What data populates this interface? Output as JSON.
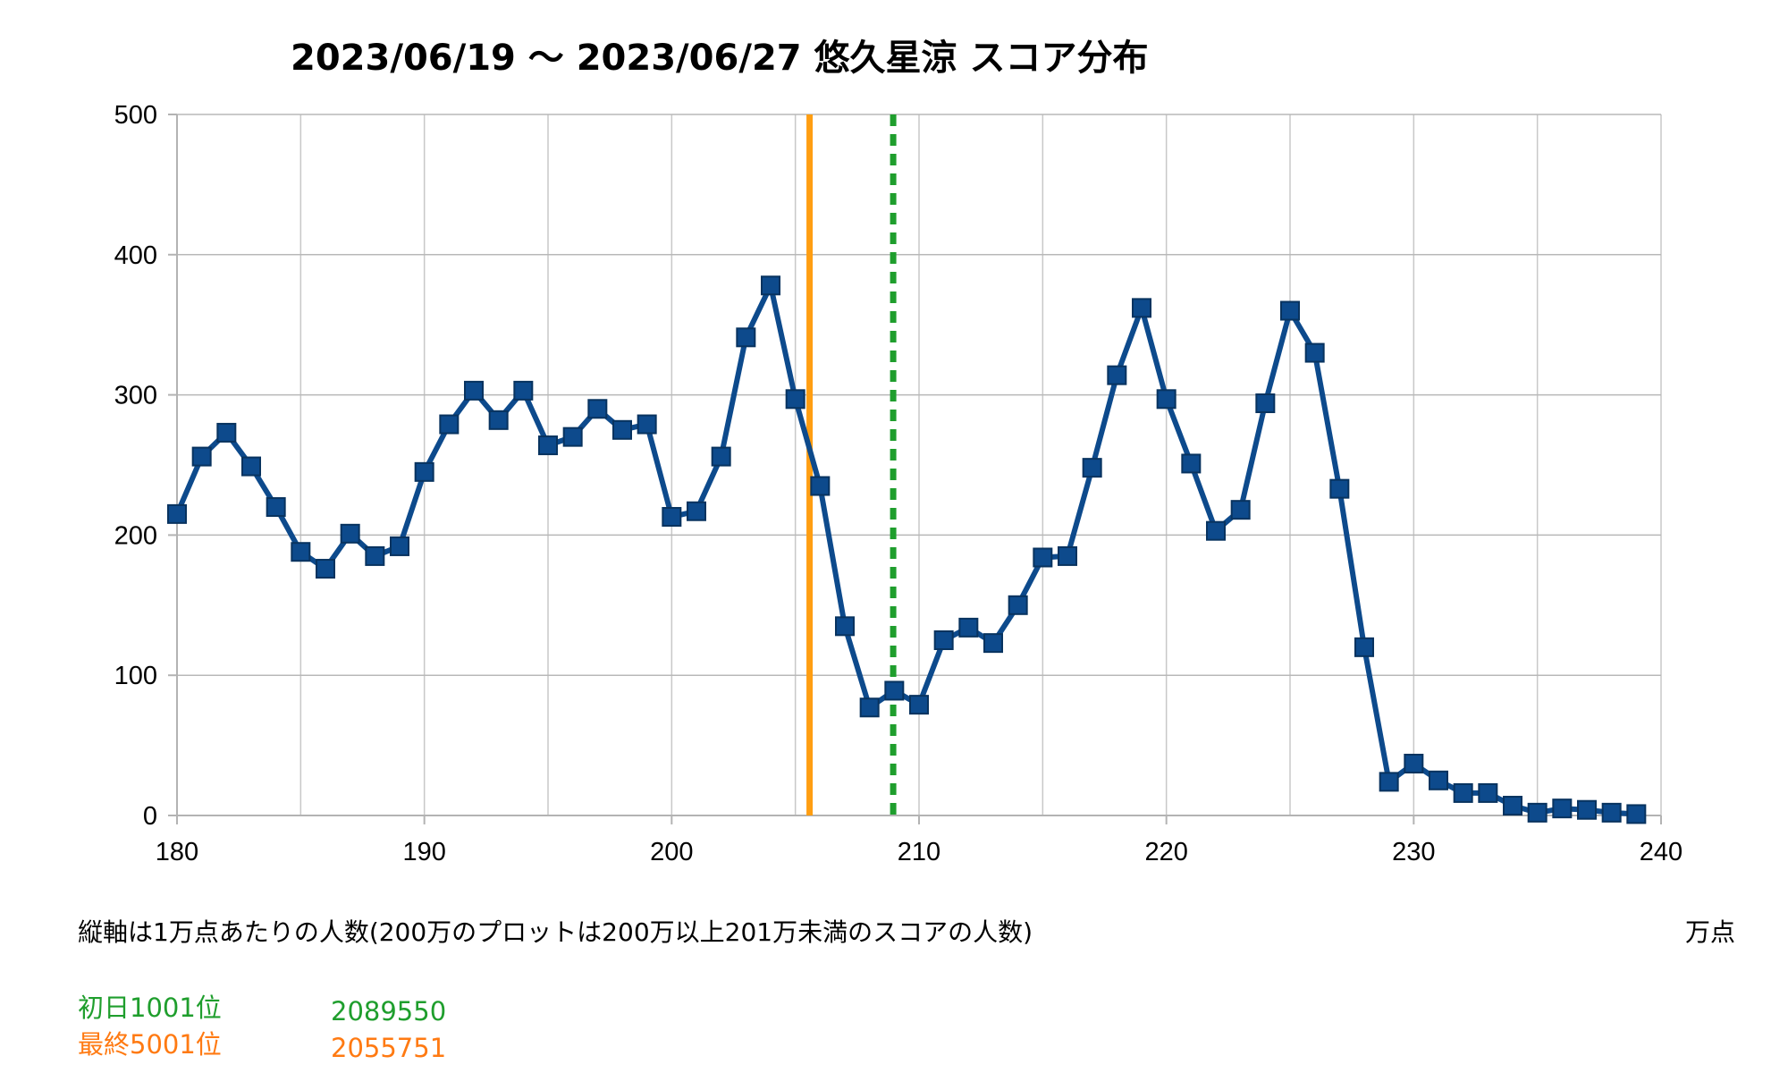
{
  "chart_data": {
    "type": "line",
    "title": "2023/06/19 〜 2023/06/27 悠久星涼 スコア分布",
    "xlabel": "万点",
    "ylabel": "",
    "xlim": [
      180,
      240
    ],
    "ylim": [
      0,
      500
    ],
    "x_ticks": [
      "180",
      "190",
      "200",
      "210",
      "220",
      "230",
      "240"
    ],
    "y_ticks": [
      "0",
      "100",
      "200",
      "300",
      "400",
      "500"
    ],
    "grid": true,
    "series": [
      {
        "x": [
          180,
          181,
          182,
          183,
          184,
          185,
          186,
          187,
          188,
          189,
          190,
          191,
          192,
          193,
          194,
          195,
          196,
          197,
          198,
          199,
          200,
          201,
          202,
          203,
          204,
          205,
          206,
          207,
          208,
          209,
          210,
          211,
          212,
          213,
          214,
          215,
          216,
          217,
          218,
          219,
          220,
          221,
          222,
          223,
          224,
          225,
          226,
          227,
          228,
          229,
          230,
          231,
          232,
          233,
          234,
          235,
          236,
          237,
          238,
          239
        ],
        "values": [
          215,
          256,
          273,
          249,
          220,
          188,
          176,
          201,
          185,
          192,
          245,
          279,
          303,
          282,
          303,
          264,
          270,
          290,
          275,
          279,
          213,
          217,
          256,
          341,
          378,
          297,
          235,
          135,
          77,
          89,
          79,
          125,
          134,
          123,
          150,
          184,
          185,
          248,
          314,
          362,
          297,
          251,
          203,
          218,
          294,
          360,
          330,
          233,
          120,
          24,
          37,
          25,
          16,
          16,
          7,
          2,
          5,
          4,
          2,
          1
        ],
        "color": "#0d4a8c",
        "marker": "square"
      }
    ],
    "reference_lines": [
      {
        "x": 205.5751,
        "color": "#ff9e12",
        "style": "solid"
      },
      {
        "x": 208.955,
        "color": "#1f9e2d",
        "style": "dashed"
      }
    ],
    "annotations": {
      "note": "縦軸は1万点あたりの人数(200万のプロットは200万以上201万未満のスコアの人数)",
      "unit_label": "万点"
    },
    "legend": [
      {
        "label": "初日1001位",
        "value": "2089550",
        "color": "#1f9e2d"
      },
      {
        "label": "最終5001位",
        "value": "2055751",
        "color": "#ff7a12"
      }
    ]
  }
}
